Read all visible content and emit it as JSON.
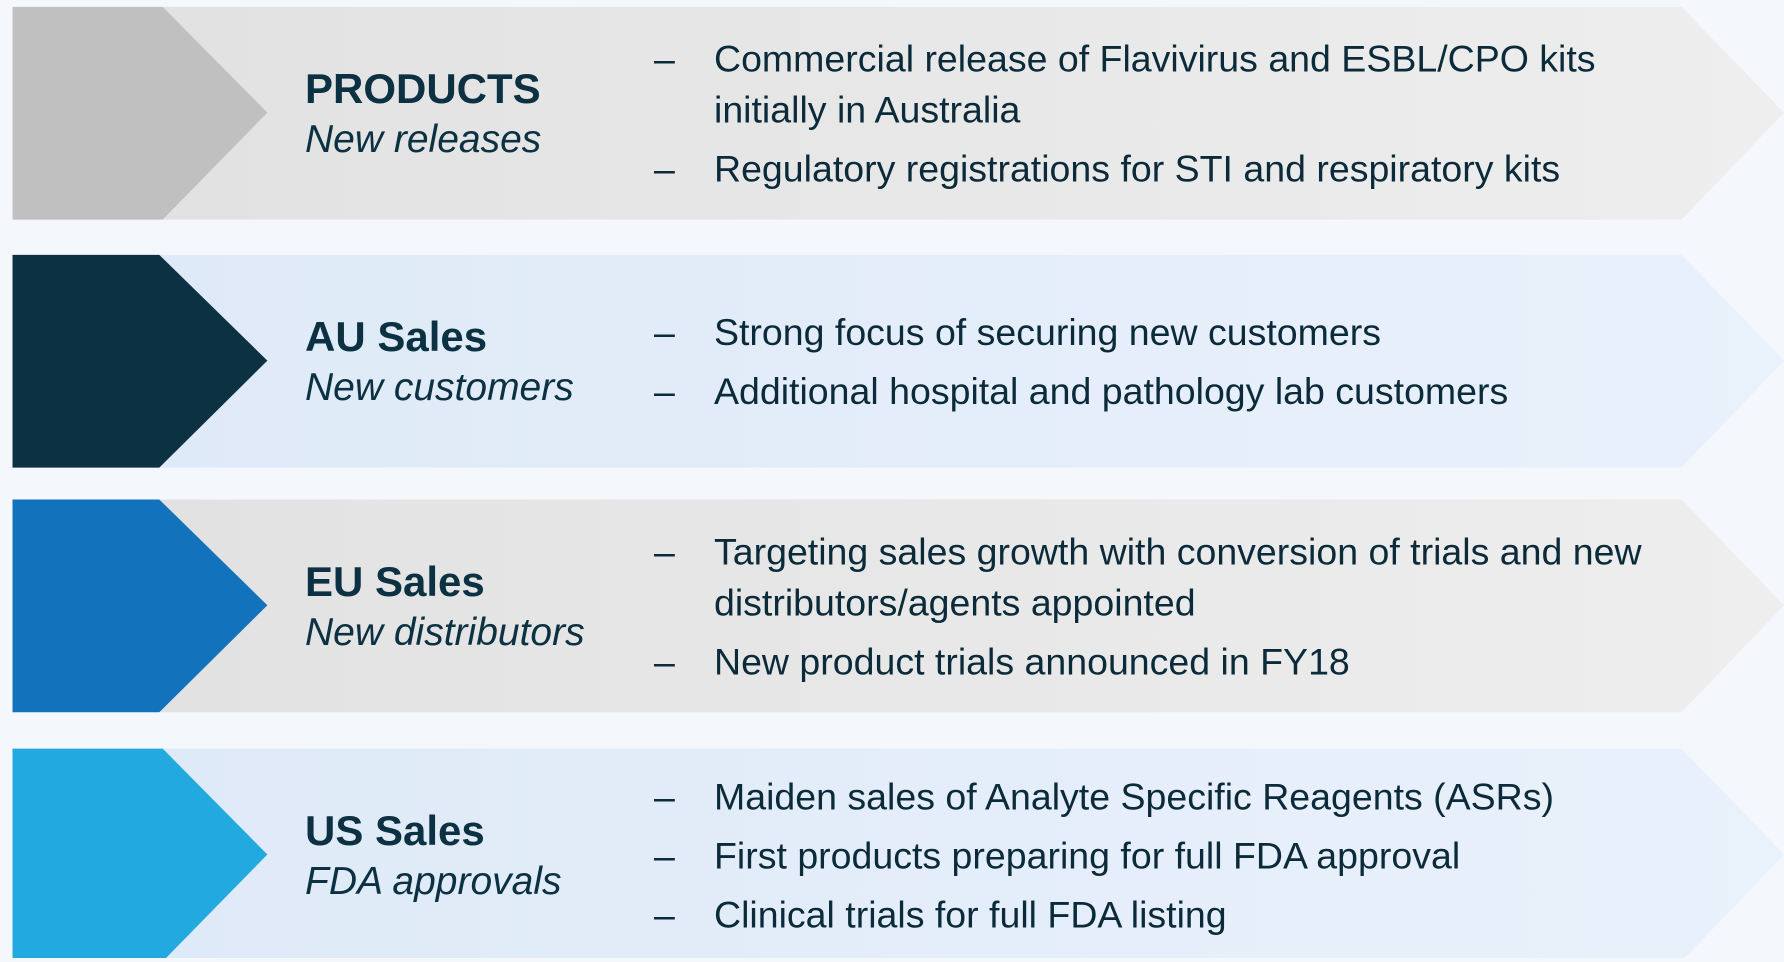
{
  "rows": [
    {
      "title": "PRODUCTS",
      "subtitle": "New releases",
      "bullets": [
        "Commercial release of Flavivirus and ESBL/CPO kits initially in Australia",
        "Regulatory registrations for STI and respiratory kits"
      ]
    },
    {
      "title": "AU Sales",
      "subtitle": "New customers",
      "bullets": [
        "Strong focus of securing new customers",
        "Additional hospital and pathology lab customers"
      ]
    },
    {
      "title": "EU Sales",
      "subtitle": "New distributors",
      "bullets": [
        "Targeting sales growth with conversion of trials and new distributors/agents appointed",
        "New product trials announced in FY18"
      ]
    },
    {
      "title": "US Sales",
      "subtitle": "FDA approvals",
      "bullets": [
        "Maiden sales of Analyte Specific Reagents (ASRs)",
        "First products preparing for full FDA approval",
        "Clinical trials for full FDA listing"
      ]
    }
  ]
}
